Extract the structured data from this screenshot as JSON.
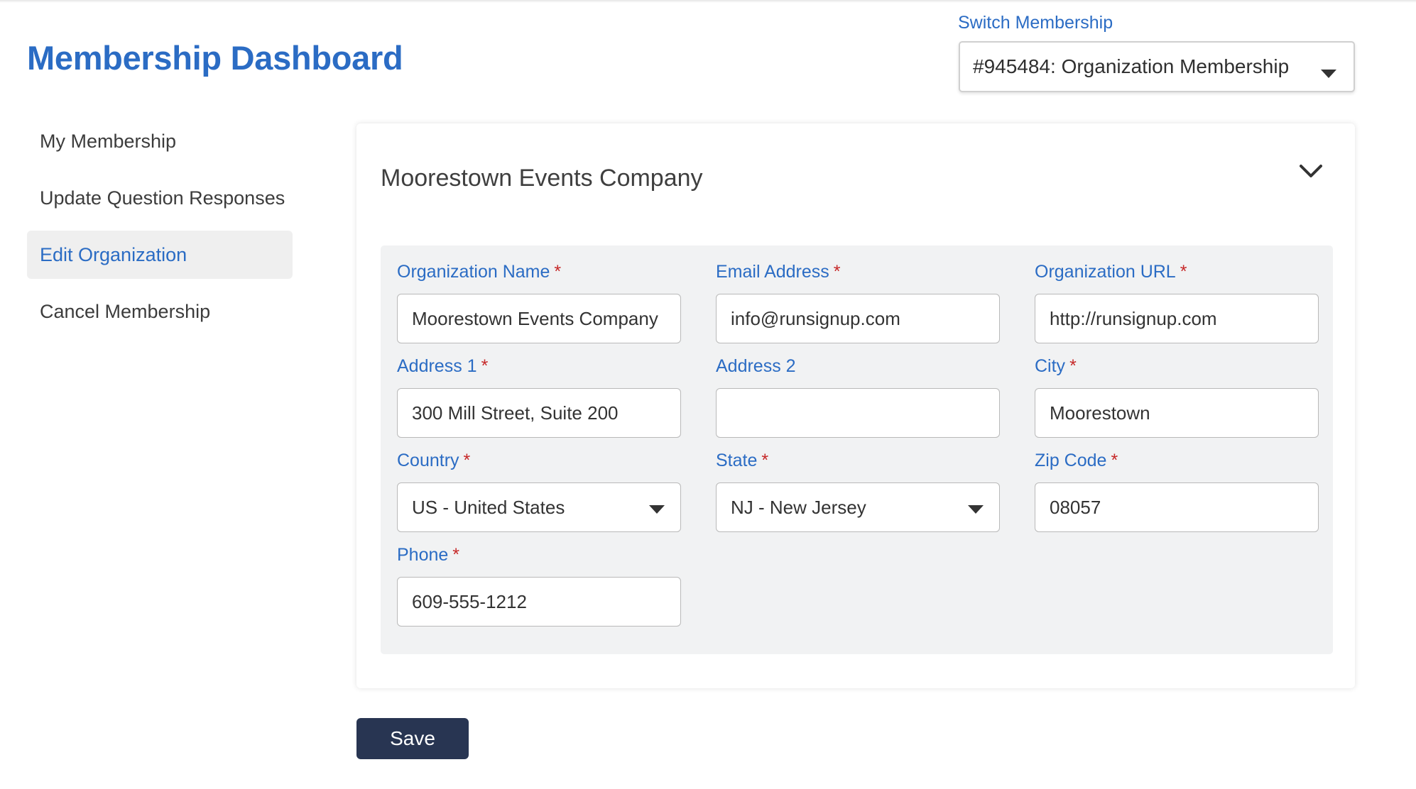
{
  "header": {
    "title": "Membership Dashboard",
    "switch_label": "Switch Membership",
    "switch_value": "#945484: Organization Membership"
  },
  "sidebar": {
    "items": [
      {
        "label": "My Membership",
        "active": false
      },
      {
        "label": "Update Question Responses",
        "active": false
      },
      {
        "label": "Edit Organization",
        "active": true
      },
      {
        "label": "Cancel Membership",
        "active": false
      }
    ]
  },
  "card": {
    "title": "Moorestown Events Company",
    "required_marker": "*",
    "fields": {
      "org_name": {
        "label": "Organization Name",
        "value": "Moorestown Events Company",
        "required": true
      },
      "email": {
        "label": "Email Address",
        "value": "info@runsignup.com",
        "required": true
      },
      "org_url": {
        "label": "Organization URL",
        "value": "http://runsignup.com",
        "required": true
      },
      "address1": {
        "label": "Address 1",
        "value": "300 Mill Street, Suite 200",
        "required": true
      },
      "address2": {
        "label": "Address 2",
        "value": "",
        "required": false
      },
      "city": {
        "label": "City",
        "value": "Moorestown",
        "required": true
      },
      "country": {
        "label": "Country",
        "value": "US - United States",
        "required": true
      },
      "state": {
        "label": "State",
        "value": "NJ - New Jersey",
        "required": true
      },
      "zip": {
        "label": "Zip Code",
        "value": "08057",
        "required": true
      },
      "phone": {
        "label": "Phone",
        "value": "609-555-1212",
        "required": true
      }
    }
  },
  "actions": {
    "save_label": "Save"
  },
  "colors": {
    "accent": "#2b6cc4",
    "required": "#c62828",
    "button": "#283552",
    "panel": "#f1f2f3"
  },
  "icons": {
    "switch_caret": "caret-down-icon",
    "collapse": "chevron-down-icon"
  }
}
